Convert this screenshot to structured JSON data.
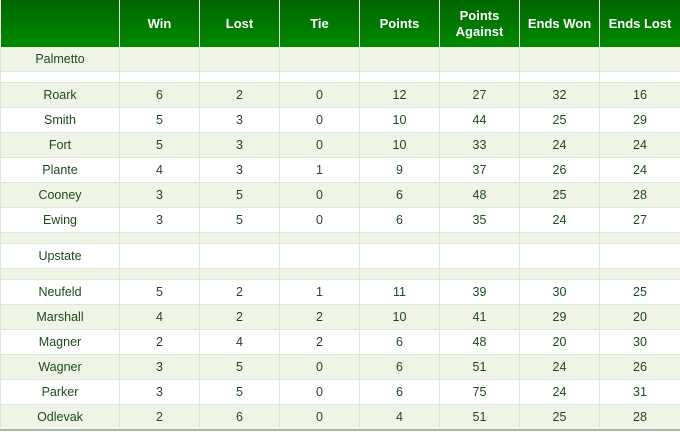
{
  "headers": [
    "",
    "Win",
    "Lost",
    "Tie",
    "Points",
    "Points Against",
    "Ends Won",
    "Ends Lost"
  ],
  "rows": [
    {
      "type": "group",
      "name": "Palmetto"
    },
    {
      "type": "spacer"
    },
    {
      "type": "player",
      "cells": [
        "Roark",
        "6",
        "2",
        "0",
        "12",
        "27",
        "32",
        "16"
      ]
    },
    {
      "type": "player",
      "cells": [
        "Smith",
        "5",
        "3",
        "0",
        "10",
        "44",
        "25",
        "29"
      ]
    },
    {
      "type": "player",
      "cells": [
        "Fort",
        "5",
        "3",
        "0",
        "10",
        "33",
        "24",
        "24"
      ]
    },
    {
      "type": "player",
      "cells": [
        "Plante",
        "4",
        "3",
        "1",
        "9",
        "37",
        "26",
        "24"
      ]
    },
    {
      "type": "player",
      "cells": [
        "Cooney",
        "3",
        "5",
        "0",
        "6",
        "48",
        "25",
        "28"
      ]
    },
    {
      "type": "player",
      "cells": [
        "Ewing",
        "3",
        "5",
        "0",
        "6",
        "35",
        "24",
        "27"
      ]
    },
    {
      "type": "spacer"
    },
    {
      "type": "group",
      "name": "Upstate"
    },
    {
      "type": "spacer"
    },
    {
      "type": "player",
      "cells": [
        "Neufeld",
        "5",
        "2",
        "1",
        "11",
        "39",
        "30",
        "25"
      ]
    },
    {
      "type": "player",
      "cells": [
        "Marshall",
        "4",
        "2",
        "2",
        "10",
        "41",
        "29",
        "20"
      ]
    },
    {
      "type": "player",
      "cells": [
        "Magner",
        "2",
        "4",
        "2",
        "6",
        "48",
        "20",
        "30"
      ]
    },
    {
      "type": "player",
      "cells": [
        "Wagner",
        "3",
        "5",
        "0",
        "6",
        "51",
        "24",
        "26"
      ]
    },
    {
      "type": "player",
      "cells": [
        "Parker",
        "3",
        "5",
        "0",
        "6",
        "75",
        "24",
        "31"
      ]
    },
    {
      "type": "player",
      "cells": [
        "Odlevak",
        "2",
        "6",
        "0",
        "4",
        "51",
        "25",
        "28"
      ]
    }
  ]
}
